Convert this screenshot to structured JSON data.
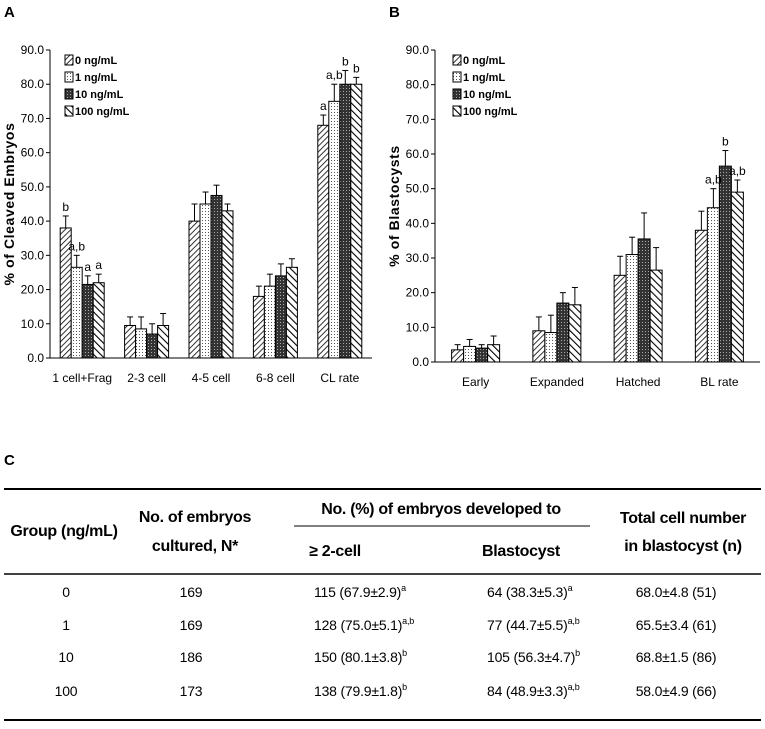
{
  "panels": {
    "a": "A",
    "b": "B",
    "c": "C"
  },
  "legend": [
    "0 ng/mL",
    "1 ng/mL",
    "10 ng/mL",
    "100 ng/mL"
  ],
  "chart_data": [
    {
      "id": "A",
      "type": "bar",
      "title": "",
      "ylabel": "% of Cleaved Embryos",
      "xlabel": "",
      "ylim": [
        0,
        90
      ],
      "yticks": [
        "0.0",
        "10.0",
        "20.0",
        "30.0",
        "40.0",
        "50.0",
        "60.0",
        "70.0",
        "80.0",
        "90.0"
      ],
      "categories": [
        "1 cell+Frag",
        "2-3 cell",
        "4-5 cell",
        "6-8 cell",
        "CL rate"
      ],
      "series": [
        {
          "name": "0 ng/mL",
          "values": [
            38,
            9.5,
            40,
            18,
            68
          ],
          "errors": [
            3.5,
            2.5,
            5,
            3,
            3
          ]
        },
        {
          "name": "1 ng/mL",
          "values": [
            26.5,
            8.5,
            45,
            21,
            75
          ],
          "errors": [
            3.5,
            3.5,
            3.5,
            3.5,
            5
          ]
        },
        {
          "name": "10 ng/mL",
          "values": [
            21.5,
            7,
            47.5,
            24,
            80
          ],
          "errors": [
            2.5,
            3,
            3,
            3.5,
            4
          ]
        },
        {
          "name": "100 ng/mL",
          "values": [
            22,
            9.5,
            43,
            26.5,
            80
          ],
          "errors": [
            2.5,
            3.5,
            2,
            2.5,
            2
          ]
        }
      ],
      "annotations": [
        {
          "category": 0,
          "series": 0,
          "text": "b"
        },
        {
          "category": 0,
          "series": 1,
          "text": "a,b"
        },
        {
          "category": 0,
          "series": 2,
          "text": "a"
        },
        {
          "category": 0,
          "series": 3,
          "text": "a"
        },
        {
          "category": 4,
          "series": 0,
          "text": "a"
        },
        {
          "category": 4,
          "series": 1,
          "text": "a,b"
        },
        {
          "category": 4,
          "series": 2,
          "text": "b"
        },
        {
          "category": 4,
          "series": 3,
          "text": "b"
        }
      ],
      "legend_position": "top-left"
    },
    {
      "id": "B",
      "type": "bar",
      "title": "",
      "ylabel": "% of Blastocysts",
      "xlabel": "",
      "ylim": [
        0,
        90
      ],
      "yticks": [
        "0.0",
        "10.0",
        "20.0",
        "30.0",
        "40.0",
        "50.0",
        "60.0",
        "70.0",
        "80.0",
        "90.0"
      ],
      "categories": [
        "Early",
        "Expanded",
        "Hatched",
        "BL rate"
      ],
      "series": [
        {
          "name": "0 ng/mL",
          "values": [
            3.5,
            9,
            25,
            38
          ],
          "errors": [
            1.5,
            4,
            5.5,
            5.5
          ]
        },
        {
          "name": "1 ng/mL",
          "values": [
            4.5,
            8.5,
            31,
            44.5
          ],
          "errors": [
            2,
            5,
            5,
            5.5
          ]
        },
        {
          "name": "10 ng/mL",
          "values": [
            4,
            17,
            35.5,
            56.5
          ],
          "errors": [
            1,
            3,
            7.5,
            4.5
          ]
        },
        {
          "name": "100 ng/mL",
          "values": [
            5,
            16.5,
            26.5,
            49
          ],
          "errors": [
            2.5,
            5,
            6.5,
            3.5
          ]
        }
      ],
      "annotations": [
        {
          "category": 3,
          "series": 1,
          "text": "a,b"
        },
        {
          "category": 3,
          "series": 2,
          "text": "b"
        },
        {
          "category": 3,
          "series": 3,
          "text": "a,b"
        }
      ],
      "legend_position": "top-left"
    },
    {
      "id": "C",
      "type": "table",
      "headers": {
        "group": "Group (ng/mL)",
        "embryos_line1": "No. of embryos",
        "embryos_line2": "cultured, N*",
        "developed": "No. (%) of embryos developed to",
        "two_cell": "≥ 2-cell",
        "blastocyst": "Blastocyst",
        "total_line1": "Total cell number",
        "total_line2": "in blastocyst (n)"
      },
      "rows": [
        {
          "group": "0",
          "n": "169",
          "two_cell": "115 (67.9±2.9)",
          "two_cell_sup": "a",
          "blast": "64 (38.3±5.3)",
          "blast_sup": "a",
          "total": "68.0±4.8 (51)"
        },
        {
          "group": "1",
          "n": "169",
          "two_cell": "128 (75.0±5.1)",
          "two_cell_sup": "a,b",
          "blast": "77 (44.7±5.5)",
          "blast_sup": "a,b",
          "total": "65.5±3.4 (61)"
        },
        {
          "group": "10",
          "n": "186",
          "two_cell": "150 (80.1±3.8)",
          "two_cell_sup": "b",
          "blast": "105 (56.3±4.7)",
          "blast_sup": "b",
          "total": "68.8±1.5 (86)"
        },
        {
          "group": "100",
          "n": "173",
          "two_cell": "138 (79.9±1.8)",
          "two_cell_sup": "b",
          "blast": "84 (48.9±3.3)",
          "blast_sup": "a,b",
          "total": "58.0±4.9 (66)"
        }
      ]
    }
  ]
}
